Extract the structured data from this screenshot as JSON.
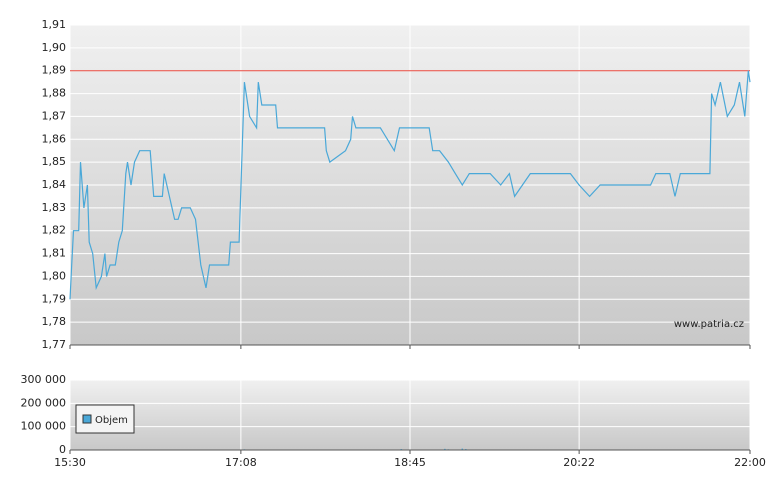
{
  "chart_data": [
    {
      "type": "line",
      "color": "#4aa8d8",
      "x": [
        "15:30",
        "15:31",
        "15:32",
        "15:35",
        "15:36",
        "15:38",
        "15:40",
        "15:41",
        "15:43",
        "15:45",
        "15:48",
        "15:50",
        "15:51",
        "15:53",
        "15:56",
        "15:58",
        "16:00",
        "16:02",
        "16:03",
        "16:05",
        "16:07",
        "16:10",
        "16:16",
        "16:18",
        "16:23",
        "16:24",
        "16:27",
        "16:30",
        "16:32",
        "16:34",
        "16:39",
        "16:42",
        "16:45",
        "16:48",
        "16:50",
        "17:01",
        "17:02",
        "17:07",
        "17:10",
        "17:13",
        "17:17",
        "17:18",
        "17:20",
        "17:28",
        "17:29",
        "17:42",
        "17:48",
        "17:56",
        "17:57",
        "17:59",
        "18:08",
        "18:11",
        "18:12",
        "18:14",
        "18:22",
        "18:28",
        "18:36",
        "18:39",
        "18:56",
        "18:58",
        "19:02",
        "19:07",
        "19:11",
        "19:15",
        "19:19",
        "19:31",
        "19:37",
        "19:42",
        "19:45",
        "19:54",
        "20:11",
        "20:17",
        "20:22",
        "20:28",
        "20:34",
        "21:03",
        "21:06",
        "21:14",
        "21:17",
        "21:20",
        "21:37",
        "21:38",
        "21:40",
        "21:43",
        "21:47",
        "21:51",
        "21:54",
        "21:57",
        "21:59",
        "22:00"
      ],
      "values": [
        1.79,
        1.805,
        1.82,
        1.82,
        1.85,
        1.83,
        1.84,
        1.815,
        1.81,
        1.795,
        1.8,
        1.81,
        1.8,
        1.805,
        1.805,
        1.815,
        1.82,
        1.845,
        1.85,
        1.84,
        1.85,
        1.855,
        1.855,
        1.835,
        1.835,
        1.845,
        1.835,
        1.825,
        1.825,
        1.83,
        1.83,
        1.825,
        1.805,
        1.795,
        1.805,
        1.805,
        1.815,
        1.815,
        1.885,
        1.87,
        1.865,
        1.885,
        1.875,
        1.875,
        1.865,
        1.865,
        1.865,
        1.865,
        1.855,
        1.85,
        1.855,
        1.86,
        1.87,
        1.865,
        1.865,
        1.865,
        1.855,
        1.865,
        1.865,
        1.855,
        1.855,
        1.85,
        1.845,
        1.84,
        1.845,
        1.845,
        1.84,
        1.845,
        1.835,
        1.845,
        1.845,
        1.845,
        1.84,
        1.835,
        1.84,
        1.84,
        1.845,
        1.845,
        1.835,
        1.845,
        1.845,
        1.88,
        1.875,
        1.885,
        1.87,
        1.875,
        1.885,
        1.87,
        1.89,
        1.885
      ],
      "xlim": [
        "15:30",
        "22:00"
      ],
      "xticks": [
        "15:30",
        "17:08",
        "18:45",
        "20:22",
        "22:00"
      ],
      "ylim": [
        1.77,
        1.91
      ],
      "yticks": [
        {
          "value": 1.77,
          "label": "1,77"
        },
        {
          "value": 1.78,
          "label": "1,78"
        },
        {
          "value": 1.79,
          "label": "1,79"
        },
        {
          "value": 1.8,
          "label": "1,80"
        },
        {
          "value": 1.81,
          "label": "1,81"
        },
        {
          "value": 1.82,
          "label": "1,82"
        },
        {
          "value": 1.83,
          "label": "1,83"
        },
        {
          "value": 1.84,
          "label": "1,84"
        },
        {
          "value": 1.85,
          "label": "1,85"
        },
        {
          "value": 1.86,
          "label": "1,86"
        },
        {
          "value": 1.87,
          "label": "1,87"
        },
        {
          "value": 1.88,
          "label": "1,88"
        },
        {
          "value": 1.89,
          "label": "1,89"
        },
        {
          "value": 1.9,
          "label": "1,90"
        },
        {
          "value": 1.91,
          "label": "1,91"
        }
      ],
      "reference_line": {
        "value": 1.89,
        "color": "#e8463c"
      },
      "annotation": "www.patria.cz"
    },
    {
      "type": "bar",
      "x": [
        "17:10",
        "18:40",
        "19:05",
        "19:07",
        "19:15",
        "19:17"
      ],
      "series": [
        {
          "name": "Objem",
          "color": "#4aa8d8",
          "values": [
            3000,
            4000,
            5000,
            3000,
            6000,
            4000
          ]
        }
      ],
      "xlim": [
        "15:30",
        "22:00"
      ],
      "xticks": [
        "15:30",
        "17:08",
        "18:45",
        "20:22",
        "22:00"
      ],
      "ylim": [
        0,
        300000
      ],
      "yticks": [
        {
          "value": 0,
          "label": "0"
        },
        {
          "value": 100000,
          "label": "100 000"
        },
        {
          "value": 200000,
          "label": "200 000"
        },
        {
          "value": 300000,
          "label": "300 000"
        }
      ]
    }
  ]
}
